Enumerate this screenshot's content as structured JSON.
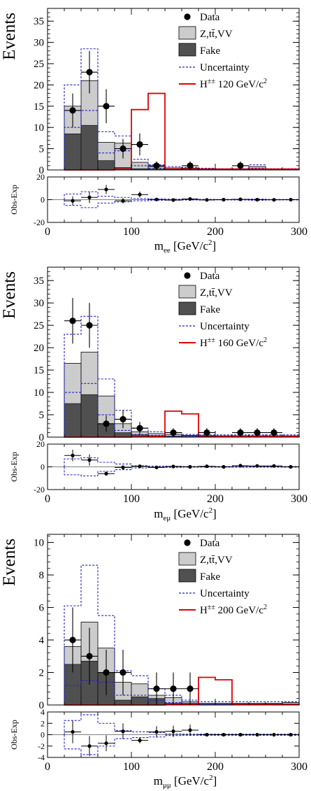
{
  "chart_data": [
    {
      "type": "bar",
      "ylabel": "Events",
      "xlabel_main": "m",
      "xlabel_sub": "ee",
      "xlabel_unit": " [GeV/c",
      "xlabel_pow": "2",
      "xlabel_close": "]",
      "xlim": [
        0,
        300
      ],
      "ylim": [
        0,
        38
      ],
      "yticks": [
        0,
        5,
        10,
        15,
        20,
        25,
        30,
        35
      ],
      "xticks": [
        0,
        100,
        200,
        300
      ],
      "bin_edges": [
        20,
        40,
        60,
        80,
        100,
        120,
        140,
        160,
        180,
        200,
        220,
        240,
        260,
        280,
        300
      ],
      "series": [
        {
          "name": "Z,tt̄,VV",
          "values": [
            15,
            21,
            6.5,
            6.3,
            1.8,
            0.8,
            0.5,
            0.4,
            0.3,
            0.2,
            0.2,
            0.8,
            0.2,
            0.2
          ]
        },
        {
          "name": "Fake",
          "values": [
            8.5,
            10.5,
            2.2,
            0.4,
            0.3,
            0.2,
            0.1,
            0.1,
            0.1,
            0.1,
            0.1,
            0.1,
            0.1,
            0.1
          ]
        },
        {
          "name": "Uncertainty",
          "up": [
            20,
            28.5,
            9,
            8,
            2.5,
            1.2,
            0.8,
            0.6,
            0.4,
            0.3,
            0.3,
            1.2,
            0.3,
            0.3
          ],
          "down": [
            10,
            14,
            4,
            4.5,
            1.0,
            0.4,
            0.2,
            0.2,
            0.1,
            0.1,
            0.1,
            0.4,
            0.1,
            0.1
          ]
        },
        {
          "name": "H±± 120 GeV/c²",
          "values": [
            0,
            0,
            0,
            0.5,
            14.2,
            18,
            0.2,
            0.2,
            0.2,
            0.2,
            0.2,
            0.2,
            0.2,
            0.2
          ]
        }
      ],
      "data": {
        "x": [
          30,
          50,
          70,
          90,
          110,
          130,
          170,
          230
        ],
        "y": [
          14,
          23,
          15,
          5,
          6,
          1,
          1,
          1
        ],
        "err": [
          4,
          5,
          4,
          2.3,
          2.6,
          1,
          1,
          1
        ]
      },
      "legend": {
        "data": "Data",
        "bkg": "Z,t",
        "bkg_t_bar": "t̄",
        "bkg_rest": ",VV",
        "fake": "Fake",
        "unc": "Uncertainty",
        "sig_pre": "H",
        "sig_sup": "±±",
        "sig_post": " 120 GeV/c",
        "sig_pow": "2"
      },
      "residual": {
        "ylabel": "Obs-Exp",
        "ylim": [
          -20,
          20
        ],
        "yticks": [
          -20,
          0,
          20
        ],
        "x": [
          30,
          50,
          70,
          90,
          110,
          130,
          150,
          170,
          190,
          210,
          230,
          250,
          270,
          290
        ],
        "y": [
          -1,
          2,
          9,
          -1,
          4.5,
          0.2,
          -0.3,
          0.6,
          -0.2,
          0,
          0.3,
          0,
          -0.1,
          0
        ],
        "err": [
          4,
          5,
          4,
          2.3,
          2.6,
          1,
          0.6,
          1,
          0.5,
          0.5,
          1,
          0.5,
          0.5,
          0.5
        ],
        "band_up": [
          5,
          7,
          3,
          2,
          1,
          0.5,
          0.4,
          0.3,
          0.3,
          0.2,
          0.3,
          0.5,
          0.2,
          0.2
        ],
        "band_down": [
          -5,
          -7,
          -3,
          -2,
          -1,
          -0.5,
          -0.4,
          -0.3,
          -0.3,
          -0.2,
          -0.3,
          -0.5,
          -0.2,
          -0.2
        ]
      }
    },
    {
      "type": "bar",
      "ylabel": "Events",
      "xlabel_main": "m",
      "xlabel_sub": "eμ",
      "xlabel_unit": " [GeV/c",
      "xlabel_pow": "2",
      "xlabel_close": "]",
      "xlim": [
        0,
        300
      ],
      "ylim": [
        0,
        38
      ],
      "yticks": [
        0,
        5,
        10,
        15,
        20,
        25,
        30,
        35
      ],
      "xticks": [
        0,
        100,
        200,
        300
      ],
      "bin_edges": [
        20,
        40,
        60,
        80,
        100,
        120,
        140,
        160,
        180,
        200,
        220,
        240,
        260,
        280,
        300
      ],
      "series": [
        {
          "name": "Z,tt̄,VV",
          "values": [
            16.5,
            19,
            9.2,
            3,
            1.2,
            0.8,
            0.6,
            0.4,
            0.3,
            0.3,
            0.3,
            0.3,
            0.3,
            0.3
          ]
        },
        {
          "name": "Fake",
          "values": [
            7.5,
            9.5,
            3,
            1,
            0.5,
            0.3,
            0.2,
            0.2,
            0.1,
            0.1,
            0.1,
            0.1,
            0.1,
            0.1
          ]
        },
        {
          "name": "Uncertainty",
          "up": [
            23,
            27,
            13,
            6,
            2,
            1.2,
            1,
            0.6,
            0.5,
            0.5,
            0.5,
            0.5,
            0.5,
            0.5
          ],
          "down": [
            10,
            12,
            5,
            1.5,
            0.6,
            0.4,
            0.2,
            0.2,
            0.1,
            0.1,
            0.1,
            0.1,
            0.1,
            0.1
          ]
        },
        {
          "name": "H±± 160 GeV/c²",
          "values": [
            0,
            0,
            0,
            0,
            0.1,
            0.2,
            5.8,
            5.2,
            0.3,
            0.2,
            0.2,
            0.2,
            0.2,
            0.2
          ]
        }
      ],
      "data": {
        "x": [
          30,
          50,
          70,
          90,
          110,
          150,
          190,
          230,
          250,
          270
        ],
        "y": [
          26,
          25,
          3,
          4,
          2,
          1,
          1,
          1,
          1,
          1
        ],
        "err": [
          5.1,
          5,
          1.8,
          2,
          1.4,
          1,
          1,
          1,
          1,
          1
        ]
      },
      "legend": {
        "data": "Data",
        "bkg": "Z,t",
        "bkg_t_bar": "t̄",
        "bkg_rest": ",VV",
        "fake": "Fake",
        "unc": "Uncertainty",
        "sig_pre": "H",
        "sig_sup": "±±",
        "sig_post": " 160 GeV/c",
        "sig_pow": "2"
      },
      "residual": {
        "ylabel": "Obs-Exp",
        "ylim": [
          -20,
          20
        ],
        "yticks": [
          -20,
          0,
          20
        ],
        "x": [
          30,
          50,
          70,
          90,
          110,
          130,
          150,
          170,
          190,
          210,
          230,
          250,
          270,
          290
        ],
        "y": [
          10,
          6,
          -6,
          -0.5,
          0.5,
          -0.5,
          0.3,
          0,
          0.5,
          0,
          1,
          0.8,
          0.8,
          0
        ],
        "err": [
          5.1,
          5,
          1.8,
          2,
          1.4,
          0.8,
          1,
          0.6,
          1,
          0.5,
          1,
          1,
          1,
          0.5
        ],
        "band_up": [
          7,
          8,
          4,
          2.5,
          1,
          0.6,
          0.5,
          0.3,
          0.3,
          0.3,
          0.3,
          0.3,
          0.3,
          0.3
        ],
        "band_down": [
          -7,
          -8,
          -4,
          -2.5,
          -1,
          -0.6,
          -0.5,
          -0.3,
          -0.3,
          -0.3,
          -0.3,
          -0.3,
          -0.3,
          -0.3
        ]
      }
    },
    {
      "type": "bar",
      "ylabel": "Events",
      "xlabel_main": "m",
      "xlabel_sub": "μμ",
      "xlabel_unit": " [GeV/c",
      "xlabel_pow": "2",
      "xlabel_close": "]",
      "xlim": [
        0,
        300
      ],
      "ylim": [
        0,
        10.5
      ],
      "yticks": [
        0,
        2,
        4,
        6,
        8,
        10
      ],
      "xticks": [
        0,
        100,
        200,
        300
      ],
      "bin_edges": [
        20,
        40,
        60,
        80,
        100,
        120,
        140,
        160,
        180,
        200,
        220,
        240,
        260,
        280,
        300
      ],
      "series": [
        {
          "name": "Z,tt̄,VV",
          "values": [
            3.6,
            5.1,
            3.5,
            1.4,
            1.3,
            0.6,
            0.45,
            0.2,
            0.1,
            0.1,
            0.1,
            0.1,
            0.1,
            0.15
          ]
        },
        {
          "name": "Fake",
          "values": [
            2.5,
            2.7,
            2.0,
            0.3,
            0.5,
            0.4,
            0.1,
            0.1,
            0.05,
            0.05,
            0.05,
            0.05,
            0.05,
            0.05
          ]
        },
        {
          "name": "Uncertainty",
          "up": [
            6.1,
            8.6,
            5.5,
            2.1,
            1.8,
            1.0,
            0.6,
            0.3,
            0.2,
            0.2,
            0.2,
            0.2,
            0.2,
            0.2
          ],
          "down": [
            1.2,
            1.5,
            1.4,
            0.6,
            0.6,
            0.3,
            0.15,
            0.1,
            0.05,
            0.05,
            0.05,
            0.05,
            0.05,
            0.05
          ]
        },
        {
          "name": "H±± 200 GeV/c²",
          "values": [
            0,
            0,
            0,
            0,
            0,
            0,
            0.05,
            0.05,
            1.7,
            1.55,
            0.05,
            0.05,
            0.05,
            0.05
          ]
        }
      ],
      "data": {
        "x": [
          30,
          50,
          70,
          90,
          130,
          150,
          170
        ],
        "y": [
          4,
          3,
          2,
          2,
          1,
          1,
          1
        ],
        "err": [
          2,
          1.75,
          1.4,
          1.4,
          1,
          1,
          1
        ]
      },
      "legend": {
        "data": "Data",
        "bkg": "Z,t",
        "bkg_t_bar": "t̄",
        "bkg_rest": ",VV",
        "fake": "Fake",
        "unc": "Uncertainty",
        "sig_pre": "H",
        "sig_sup": "±±",
        "sig_post": " 200 GeV/c",
        "sig_pow": "2"
      },
      "residual": {
        "ylabel": "Obs-Exp",
        "ylim": [
          -4,
          4
        ],
        "yticks": [
          -4,
          -2,
          0,
          2,
          4
        ],
        "x": [
          30,
          50,
          70,
          90,
          110,
          130,
          150,
          170,
          190,
          210,
          230,
          250,
          270,
          290
        ],
        "y": [
          0.5,
          -2,
          -1.5,
          0.6,
          -1,
          0.5,
          0.6,
          0.8,
          0,
          0,
          0,
          0,
          0,
          0
        ],
        "err": [
          2,
          1.75,
          1.4,
          1.4,
          0.5,
          1,
          1,
          1,
          0.2,
          0.2,
          0.2,
          0.2,
          0.2,
          0.2
        ],
        "band_up": [
          2.5,
          3.5,
          2,
          0.7,
          0.5,
          0.4,
          0.15,
          0.1,
          0.1,
          0.1,
          0.1,
          0.1,
          0.1,
          0.1
        ],
        "band_down": [
          -2.5,
          -3.5,
          -2,
          -0.7,
          -0.5,
          -0.4,
          -0.15,
          -0.1,
          -0.1,
          -0.1,
          -0.1,
          -0.1,
          -0.1,
          -0.1
        ]
      }
    }
  ]
}
